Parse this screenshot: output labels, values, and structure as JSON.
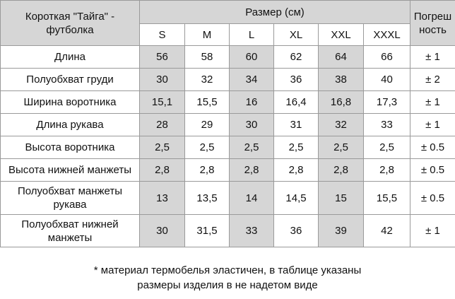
{
  "table": {
    "corner_line1": "Короткая \"Тайга\" -",
    "corner_line2": "футболка",
    "size_header": "Размер (см)",
    "tolerance_line1": "Погреш",
    "tolerance_line2": "ность",
    "sizes": [
      "S",
      "M",
      "L",
      "XL",
      "XXL",
      "XXXL"
    ],
    "rows": [
      {
        "label": [
          "Длина"
        ],
        "values": [
          "56",
          "58",
          "60",
          "62",
          "64",
          "66"
        ],
        "tolerance": "± 1"
      },
      {
        "label": [
          "Полуобхват груди"
        ],
        "values": [
          "30",
          "32",
          "34",
          "36",
          "38",
          "40"
        ],
        "tolerance": "± 2"
      },
      {
        "label": [
          "Ширина воротника"
        ],
        "values": [
          "15,1",
          "15,5",
          "16",
          "16,4",
          "16,8",
          "17,3"
        ],
        "tolerance": "± 1"
      },
      {
        "label": [
          "Длина рукава"
        ],
        "values": [
          "28",
          "29",
          "30",
          "31",
          "32",
          "33"
        ],
        "tolerance": "± 1"
      },
      {
        "label": [
          "Высота воротника"
        ],
        "values": [
          "2,5",
          "2,5",
          "2,5",
          "2,5",
          "2,5",
          "2,5"
        ],
        "tolerance": "± 0.5"
      },
      {
        "label": [
          "Высота нижней манжеты"
        ],
        "values": [
          "2,8",
          "2,8",
          "2,8",
          "2,8",
          "2,8",
          "2,8"
        ],
        "tolerance": "± 0.5"
      },
      {
        "label": [
          "Полуобхват манжеты",
          "рукава"
        ],
        "values": [
          "13",
          "13,5",
          "14",
          "14,5",
          "15",
          "15,5"
        ],
        "tolerance": "± 0.5"
      },
      {
        "label": [
          "Полуобхват нижней",
          "манжеты"
        ],
        "values": [
          "30",
          "31,5",
          "33",
          "36",
          "39",
          "42"
        ],
        "tolerance": "± 1"
      }
    ]
  },
  "footnote": {
    "line1": "* материал термобелья эластичен, в таблице указаны",
    "line2": "размеры изделия в не надетом виде"
  }
}
